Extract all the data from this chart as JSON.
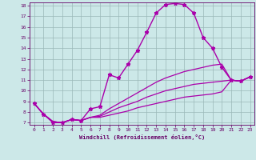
{
  "xlabel": "Windchill (Refroidissement éolien,°C)",
  "ylabel": "",
  "bg_color": "#cce8e8",
  "grid_color": "#b0c8c8",
  "line_color": "#aa00aa",
  "xlim": [
    0,
    23
  ],
  "ylim": [
    7,
    18
  ],
  "xticks": [
    0,
    1,
    2,
    3,
    4,
    5,
    6,
    7,
    8,
    9,
    10,
    11,
    12,
    13,
    14,
    15,
    16,
    17,
    18,
    19,
    20,
    21,
    22,
    23
  ],
  "yticks": [
    7,
    8,
    9,
    10,
    11,
    12,
    13,
    14,
    15,
    16,
    17,
    18
  ],
  "lines": [
    {
      "x": [
        0,
        1,
        2,
        3,
        4,
        5,
        6,
        7,
        8,
        9,
        10,
        11,
        12,
        13,
        14,
        15,
        16,
        17,
        18,
        19,
        20,
        21,
        22,
        23
      ],
      "y": [
        8.8,
        7.8,
        7.0,
        7.0,
        7.3,
        7.2,
        8.3,
        8.5,
        11.5,
        11.2,
        12.5,
        13.8,
        15.5,
        17.3,
        18.1,
        18.2,
        18.1,
        17.3,
        15.0,
        14.0,
        12.2,
        11.0,
        10.9,
        11.3
      ],
      "marker": "*",
      "markersize": 3.5,
      "linewidth": 1.0,
      "linestyle": "-"
    },
    {
      "x": [
        0,
        1,
        2,
        3,
        4,
        5,
        6,
        7,
        8,
        9,
        10,
        11,
        12,
        13,
        14,
        15,
        16,
        17,
        18,
        19,
        20,
        21,
        22,
        23
      ],
      "y": [
        8.8,
        7.8,
        7.1,
        7.0,
        7.3,
        7.2,
        7.5,
        7.7,
        8.3,
        8.8,
        9.3,
        9.8,
        10.3,
        10.8,
        11.2,
        11.5,
        11.8,
        12.0,
        12.2,
        12.4,
        12.5,
        11.0,
        10.9,
        11.3
      ],
      "marker": null,
      "markersize": 0,
      "linewidth": 0.9,
      "linestyle": "-"
    },
    {
      "x": [
        0,
        1,
        2,
        3,
        4,
        5,
        6,
        7,
        8,
        9,
        10,
        11,
        12,
        13,
        14,
        15,
        16,
        17,
        18,
        19,
        20,
        21,
        22,
        23
      ],
      "y": [
        8.8,
        7.8,
        7.1,
        7.0,
        7.3,
        7.2,
        7.5,
        7.6,
        8.0,
        8.4,
        8.7,
        9.0,
        9.4,
        9.7,
        10.0,
        10.2,
        10.4,
        10.6,
        10.7,
        10.8,
        10.9,
        11.0,
        10.9,
        11.3
      ],
      "marker": null,
      "markersize": 0,
      "linewidth": 0.9,
      "linestyle": "-"
    },
    {
      "x": [
        0,
        1,
        2,
        3,
        4,
        5,
        6,
        7,
        8,
        9,
        10,
        11,
        12,
        13,
        14,
        15,
        16,
        17,
        18,
        19,
        20,
        21,
        22,
        23
      ],
      "y": [
        8.8,
        7.8,
        7.1,
        7.0,
        7.3,
        7.2,
        7.5,
        7.5,
        7.7,
        7.9,
        8.1,
        8.4,
        8.6,
        8.8,
        9.0,
        9.2,
        9.4,
        9.5,
        9.6,
        9.7,
        9.9,
        11.0,
        10.9,
        11.3
      ],
      "marker": null,
      "markersize": 0,
      "linewidth": 0.9,
      "linestyle": "-"
    }
  ]
}
